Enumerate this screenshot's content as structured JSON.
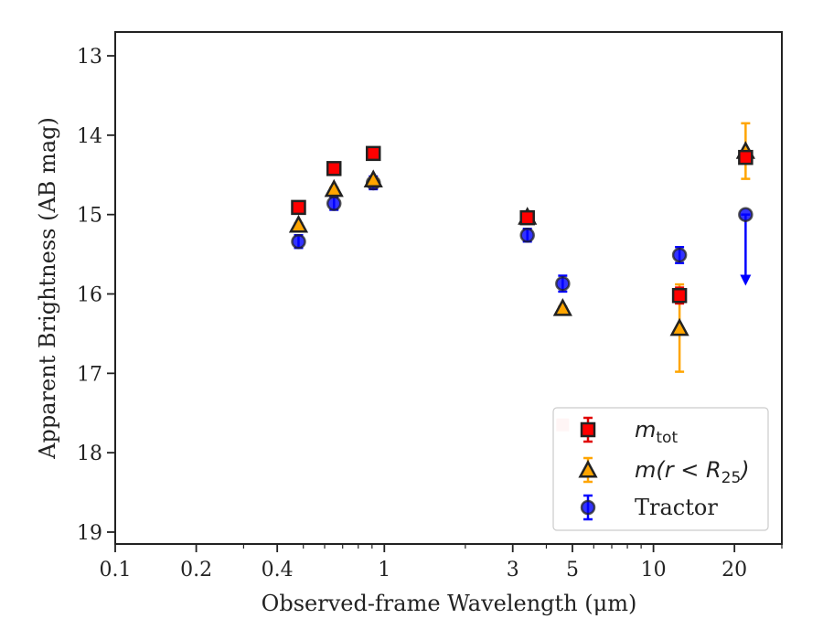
{
  "chart_data": {
    "type": "scatter",
    "title": "",
    "xlabel": "Observed-frame Wavelength (μm)",
    "ylabel": "Apparent Brightness (AB mag)",
    "xscale": "log",
    "xlim": [
      0.1,
      30
    ],
    "ylim": [
      19.15,
      12.7
    ],
    "y_inverted": true,
    "x_ticks": [
      0.1,
      0.2,
      0.4,
      1,
      3,
      5,
      10,
      20
    ],
    "x_tick_labels": [
      "0.1",
      "0.2",
      "0.4",
      "1",
      "3",
      "5",
      "10",
      "20"
    ],
    "y_ticks": [
      13,
      14,
      15,
      16,
      17,
      18,
      19
    ],
    "y_tick_labels": [
      "13",
      "14",
      "15",
      "16",
      "17",
      "18",
      "19"
    ],
    "grid": false,
    "legend_position": "bottom-right",
    "series": [
      {
        "name": "m_tot",
        "legend_main": "m",
        "legend_sub": "tot",
        "marker": "square",
        "color": "#ff0000",
        "edge_color": "#222222",
        "error_color": "#e00000",
        "points": [
          {
            "x": 0.48,
            "y": 14.91,
            "yerr_low": 0.03,
            "yerr_high": 0.03
          },
          {
            "x": 0.65,
            "y": 14.42,
            "yerr_low": 0.02,
            "yerr_high": 0.02
          },
          {
            "x": 0.91,
            "y": 14.23,
            "yerr_low": 0.03,
            "yerr_high": 0.03
          },
          {
            "x": 3.4,
            "y": 15.04,
            "yerr_low": 0.02,
            "yerr_high": 0.02
          },
          {
            "x": 12.5,
            "y": 16.02,
            "yerr_low": 0.1,
            "yerr_high": 0.1
          },
          {
            "x": 22.0,
            "y": 14.28,
            "yerr_low": 0.05,
            "yerr_high": 0.05
          }
        ]
      },
      {
        "name": "m(r < R_25)",
        "legend_main": "m(r < R",
        "legend_sub": "25",
        "legend_close": ")",
        "marker": "triangle",
        "color": "#ffa500",
        "edge_color": "#222222",
        "error_color": "#ffa500",
        "points": [
          {
            "x": 0.48,
            "y": 15.13,
            "yerr_low": 0.02,
            "yerr_high": 0.02
          },
          {
            "x": 0.65,
            "y": 14.68,
            "yerr_low": 0.02,
            "yerr_high": 0.02
          },
          {
            "x": 0.91,
            "y": 14.56,
            "yerr_low": 0.02,
            "yerr_high": 0.02
          },
          {
            "x": 3.4,
            "y": 15.03,
            "yerr_low": 0.02,
            "yerr_high": 0.02
          },
          {
            "x": 4.6,
            "y": 16.18,
            "yerr_low": 0.02,
            "yerr_high": 0.02
          },
          {
            "x": 12.5,
            "y": 16.43,
            "yerr_low": 0.55,
            "yerr_high": 0.55
          },
          {
            "x": 22.0,
            "y": 14.2,
            "yerr_low": 0.35,
            "yerr_high": 0.35
          }
        ]
      },
      {
        "name": "Tractor",
        "marker": "circle",
        "color": "#0000ff",
        "edge_color": "#222222",
        "error_color": "#0000ff",
        "points": [
          {
            "x": 0.48,
            "y": 15.34,
            "yerr_low": 0.08,
            "yerr_high": 0.08
          },
          {
            "x": 0.65,
            "y": 14.86,
            "yerr_low": 0.08,
            "yerr_high": 0.08
          },
          {
            "x": 0.91,
            "y": 14.6,
            "yerr_low": 0.08,
            "yerr_high": 0.08
          },
          {
            "x": 3.4,
            "y": 15.26,
            "yerr_low": 0.08,
            "yerr_high": 0.08
          },
          {
            "x": 4.6,
            "y": 15.87,
            "yerr_low": 0.1,
            "yerr_high": 0.1
          },
          {
            "x": 12.5,
            "y": 15.51,
            "yerr_low": 0.1,
            "yerr_high": 0.1
          },
          {
            "x": 22.0,
            "y": 15.0,
            "upper_limit": true,
            "limit_to": 15.85
          }
        ]
      }
    ],
    "extra_marker": {
      "x": 4.6,
      "y": 17.65,
      "color": "#ffbbbb"
    }
  }
}
